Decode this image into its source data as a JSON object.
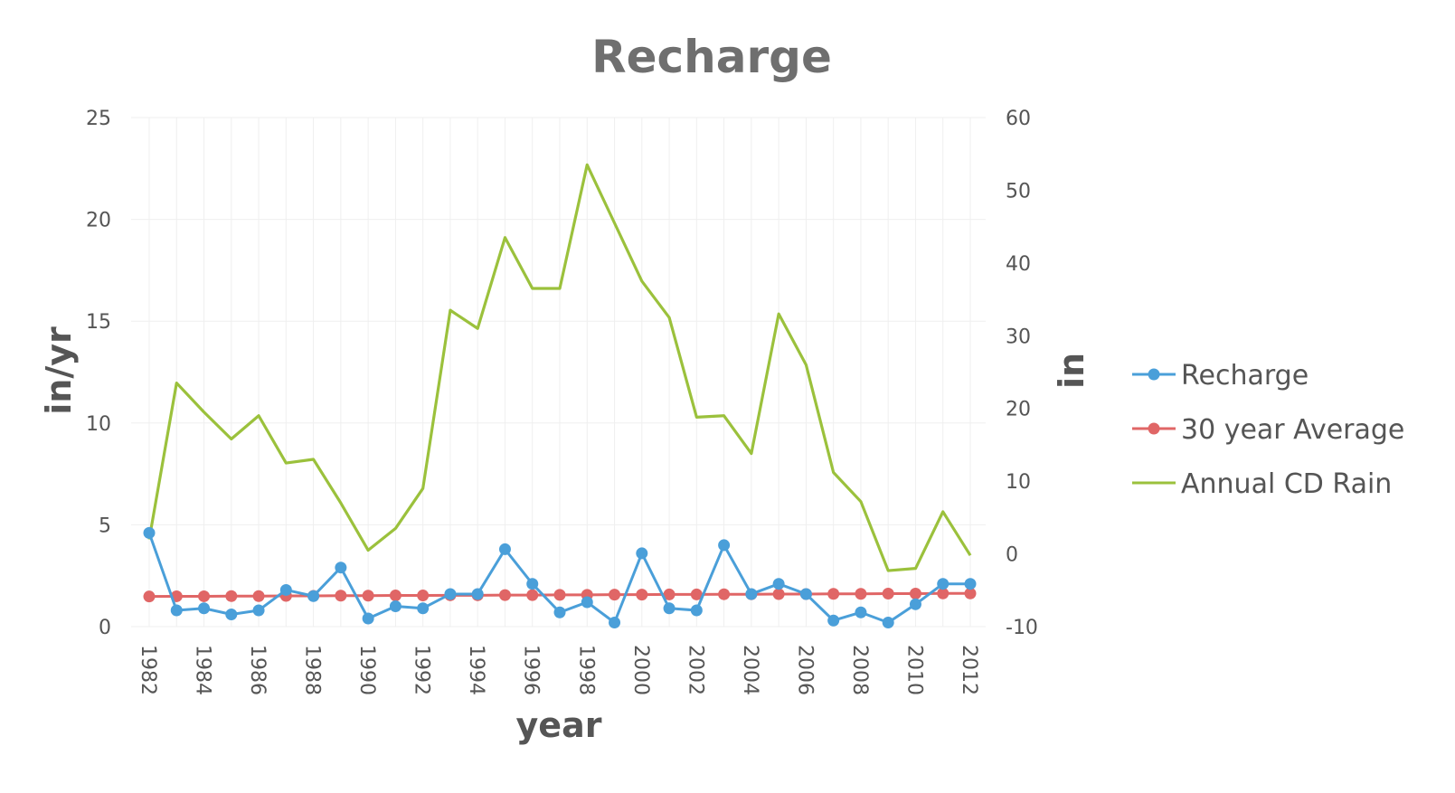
{
  "chart_data": {
    "type": "line",
    "title": "Recharge",
    "xlabel": "year",
    "ylabel": "in/yr",
    "y2label": "in",
    "x": [
      1982,
      1983,
      1984,
      1985,
      1986,
      1987,
      1988,
      1989,
      1990,
      1991,
      1992,
      1993,
      1994,
      1995,
      1996,
      1997,
      1998,
      1999,
      2000,
      2001,
      2002,
      2003,
      2004,
      2005,
      2006,
      2007,
      2008,
      2009,
      2010,
      2011,
      2012
    ],
    "x_tick_labels": [
      "1982",
      "1984",
      "1986",
      "1988",
      "1990",
      "1992",
      "1994",
      "1996",
      "1998",
      "2000",
      "2002",
      "2004",
      "2006",
      "2008",
      "2010",
      "2012"
    ],
    "ylim": [
      0,
      25
    ],
    "y_ticks": [
      "0",
      "5",
      "10",
      "15",
      "20",
      "25"
    ],
    "y2lim": [
      -10,
      60
    ],
    "y2_ticks": [
      "-10",
      "0",
      "10",
      "20",
      "30",
      "40",
      "50",
      "60"
    ],
    "grid": true,
    "legend_position": "right",
    "series": [
      {
        "name": "Recharge",
        "axis": "left",
        "color": "#4a9fd9",
        "markers": true,
        "values": [
          4.6,
          0.8,
          0.9,
          0.6,
          0.8,
          1.8,
          1.5,
          2.9,
          0.4,
          1.0,
          0.9,
          1.6,
          1.6,
          3.8,
          2.1,
          0.7,
          1.2,
          0.2,
          3.6,
          0.9,
          0.8,
          4.0,
          1.6,
          2.1,
          1.6,
          0.3,
          0.7,
          0.2,
          1.1,
          2.1,
          2.1
        ]
      },
      {
        "name": "30 year Average",
        "axis": "left",
        "color": "#e06666",
        "markers": true,
        "values": [
          1.48,
          1.49,
          1.49,
          1.5,
          1.5,
          1.51,
          1.51,
          1.52,
          1.52,
          1.53,
          1.53,
          1.54,
          1.54,
          1.55,
          1.55,
          1.56,
          1.56,
          1.57,
          1.57,
          1.58,
          1.58,
          1.59,
          1.59,
          1.6,
          1.6,
          1.61,
          1.61,
          1.62,
          1.62,
          1.63,
          1.63
        ]
      },
      {
        "name": "Annual CD Rain",
        "axis": "right",
        "color": "#9bc13c",
        "markers": false,
        "values": [
          2,
          23.5,
          19.5,
          15.8,
          19,
          12.5,
          13,
          7,
          0.5,
          3.5,
          9,
          33.5,
          31,
          43.5,
          36.5,
          36.5,
          53.5,
          45.5,
          37.5,
          32.5,
          18.8,
          19,
          13.8,
          33,
          26,
          11.2,
          7.2,
          -2.3,
          -2,
          5.8,
          -0.2
        ]
      }
    ]
  }
}
